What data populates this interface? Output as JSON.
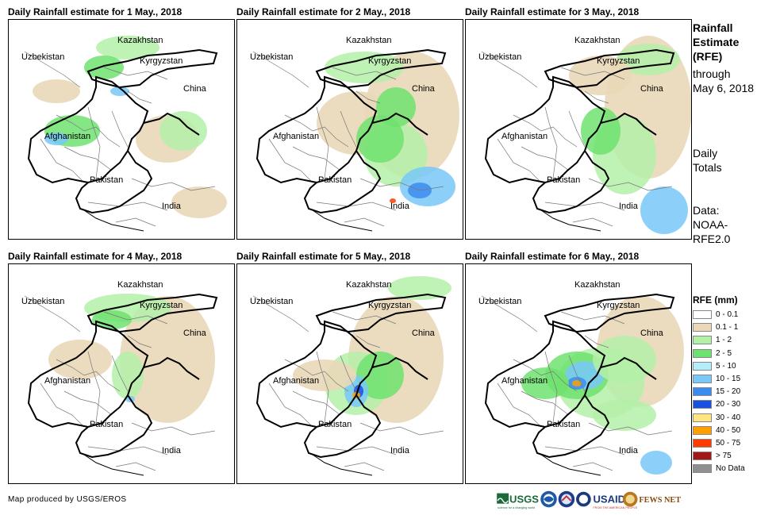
{
  "panels": [
    {
      "title": "Daily Rainfall estimate for 1 May., 2018"
    },
    {
      "title": "Daily Rainfall estimate for 2 May., 2018"
    },
    {
      "title": "Daily Rainfall estimate for 3 May., 2018"
    },
    {
      "title": "Daily Rainfall estimate for 4 May., 2018"
    },
    {
      "title": "Daily Rainfall estimate for 5 May., 2018"
    },
    {
      "title": "Daily Rainfall estimate for 6 May., 2018"
    }
  ],
  "map_labels": {
    "kazakhstan": "Kazakhstan",
    "uzbekistan": "Uzbekistan",
    "kyrgyzstan": "Kyrgyzstan",
    "china": "China",
    "afghanistan": "Afghanistan",
    "pakistan": "Pakistan",
    "india": "India"
  },
  "side": {
    "title_lines": [
      "Rainfall",
      "Estimate",
      "(RFE)"
    ],
    "through_lines": [
      "through",
      "May 6, 2018"
    ],
    "totals_lines": [
      "Daily",
      "Totals"
    ],
    "data_lines": [
      "Data:",
      "NOAA-",
      "RFE2.0"
    ]
  },
  "legend": {
    "title": "RFE (mm)",
    "items": [
      {
        "label": "0 - 0.1",
        "color": "#ffffff"
      },
      {
        "label": "0.1 - 1",
        "color": "#ead8b8"
      },
      {
        "label": "1 - 2",
        "color": "#b4f0a8"
      },
      {
        "label": "2 - 5",
        "color": "#6ee26e"
      },
      {
        "label": "5 - 10",
        "color": "#b4eef8"
      },
      {
        "label": "10 - 15",
        "color": "#78c8f8"
      },
      {
        "label": "15 - 20",
        "color": "#3c8cf0"
      },
      {
        "label": "20 - 30",
        "color": "#1a50e0"
      },
      {
        "label": "30 - 40",
        "color": "#ffe680"
      },
      {
        "label": "40 - 50",
        "color": "#ffa000"
      },
      {
        "label": "50 - 75",
        "color": "#ff3c00"
      },
      {
        "label": "> 75",
        "color": "#a01818"
      },
      {
        "label": "No Data",
        "color": "#909090"
      }
    ]
  },
  "credit": "Map produced by USGS/EROS",
  "logos": {
    "usgs": "USGS",
    "usgs_tagline": "science for a changing world",
    "usaid": "USAID",
    "usaid_tagline": "FROM THE AMERICAN PEOPLE",
    "fewsnet": "FEWS NET"
  }
}
